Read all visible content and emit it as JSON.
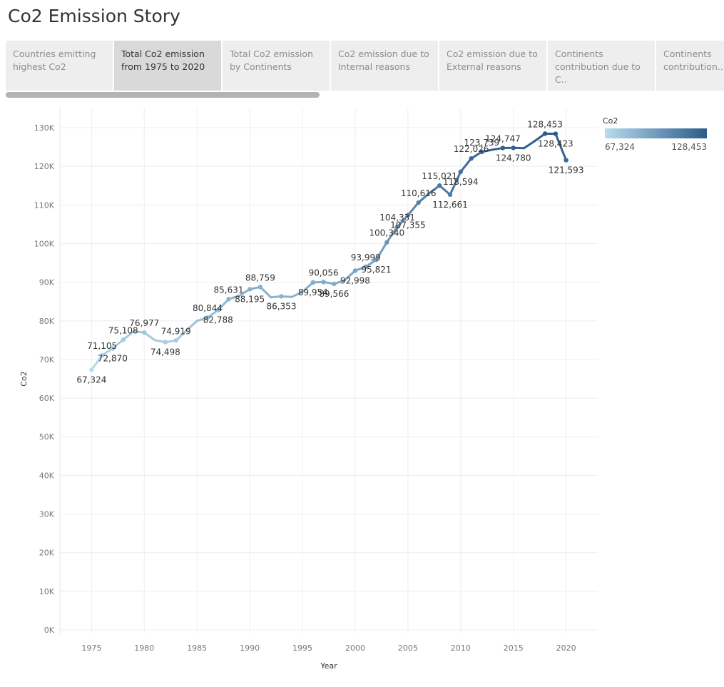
{
  "story": {
    "title": "Co2 Emission Story"
  },
  "tabs": [
    {
      "label": "Countries emitting highest Co2",
      "active": false
    },
    {
      "label": "Total Co2 emission from 1975 to 2020",
      "active": true
    },
    {
      "label": "Total Co2 emission by Continents",
      "active": false
    },
    {
      "label": "Co2 emission due to Internal reasons",
      "active": false
    },
    {
      "label": "Co2 emission due to External reasons",
      "active": false
    },
    {
      "label": "Continents contribution due to C..",
      "active": false
    },
    {
      "label": "Continents contribution..",
      "active": false
    }
  ],
  "colors": {
    "low": "#b7dcee",
    "high": "#2c5a8a",
    "grid": "#eeeeee",
    "tab_bg": "#eeeeee",
    "tab_active_bg": "#d9d9d9"
  },
  "chart_data": {
    "type": "line",
    "xlabel": "Year",
    "ylabel": "Co2",
    "xlim": [
      1972,
      2023
    ],
    "ylim": [
      0,
      135000
    ],
    "x_ticks": [
      1975,
      1980,
      1985,
      1990,
      1995,
      2000,
      2005,
      2010,
      2015,
      2020
    ],
    "y_ticks": [
      0,
      10000,
      20000,
      30000,
      40000,
      50000,
      60000,
      70000,
      80000,
      90000,
      100000,
      110000,
      120000,
      130000
    ],
    "y_tick_labels": [
      "0K",
      "10K",
      "20K",
      "30K",
      "40K",
      "50K",
      "60K",
      "70K",
      "80K",
      "90K",
      "100K",
      "110K",
      "120K",
      "130K"
    ],
    "grid": true,
    "legend": {
      "title": "Co2",
      "type": "color-gradient",
      "min_label": "67,324",
      "max_label": "128,453",
      "placement": "top-right"
    },
    "x": [
      1975,
      1976,
      1977,
      1978,
      1979,
      1980,
      1981,
      1982,
      1983,
      1984,
      1985,
      1986,
      1987,
      1988,
      1989,
      1990,
      1991,
      1992,
      1993,
      1994,
      1995,
      1996,
      1997,
      1998,
      1999,
      2000,
      2001,
      2002,
      2003,
      2004,
      2005,
      2006,
      2007,
      2008,
      2009,
      2010,
      2011,
      2012,
      2013,
      2014,
      2015,
      2016,
      2017,
      2018,
      2019,
      2020
    ],
    "y": [
      67324,
      71105,
      72870,
      75108,
      77300,
      76977,
      75000,
      74498,
      74919,
      77500,
      80000,
      80844,
      82788,
      85631,
      86500,
      88195,
      88759,
      86100,
      86353,
      86200,
      87500,
      89954,
      90056,
      89566,
      90500,
      92998,
      93999,
      95821,
      100340,
      104331,
      107355,
      110616,
      113000,
      115021,
      112661,
      118594,
      122026,
      123739,
      124300,
      124747,
      124780,
      124700,
      126500,
      128453,
      128423,
      121593
    ],
    "labels": [
      {
        "x": 1975,
        "y": 67324,
        "text": "67,324",
        "pos": "below"
      },
      {
        "x": 1976,
        "y": 71105,
        "text": "71,105",
        "pos": "above"
      },
      {
        "x": 1977,
        "y": 72870,
        "text": "72,870",
        "pos": "below"
      },
      {
        "x": 1978,
        "y": 75108,
        "text": "75,108",
        "pos": "above"
      },
      {
        "x": 1980,
        "y": 76977,
        "text": "76,977",
        "pos": "above"
      },
      {
        "x": 1982,
        "y": 74498,
        "text": "74,498",
        "pos": "below"
      },
      {
        "x": 1983,
        "y": 74919,
        "text": "74,919",
        "pos": "above"
      },
      {
        "x": 1986,
        "y": 80844,
        "text": "80,844",
        "pos": "above"
      },
      {
        "x": 1987,
        "y": 82788,
        "text": "82,788",
        "pos": "below"
      },
      {
        "x": 1988,
        "y": 85631,
        "text": "85,631",
        "pos": "above"
      },
      {
        "x": 1990,
        "y": 88195,
        "text": "88,195",
        "pos": "below"
      },
      {
        "x": 1991,
        "y": 88759,
        "text": "88,759",
        "pos": "above"
      },
      {
        "x": 1993,
        "y": 86353,
        "text": "86,353",
        "pos": "below"
      },
      {
        "x": 1996,
        "y": 89954,
        "text": "89,954",
        "pos": "below"
      },
      {
        "x": 1997,
        "y": 90056,
        "text": "90,056",
        "pos": "above"
      },
      {
        "x": 1998,
        "y": 89566,
        "text": "89,566",
        "pos": "below"
      },
      {
        "x": 2000,
        "y": 92998,
        "text": "92,998",
        "pos": "below"
      },
      {
        "x": 2001,
        "y": 93999,
        "text": "93,999",
        "pos": "above"
      },
      {
        "x": 2002,
        "y": 95821,
        "text": "95,821",
        "pos": "below"
      },
      {
        "x": 2003,
        "y": 100340,
        "text": "100,340",
        "pos": "above"
      },
      {
        "x": 2004,
        "y": 104331,
        "text": "104,331",
        "pos": "above"
      },
      {
        "x": 2005,
        "y": 107355,
        "text": "107,355",
        "pos": "below"
      },
      {
        "x": 2006,
        "y": 110616,
        "text": "110,616",
        "pos": "above"
      },
      {
        "x": 2008,
        "y": 115021,
        "text": "115,021",
        "pos": "above"
      },
      {
        "x": 2009,
        "y": 112661,
        "text": "112,661",
        "pos": "below"
      },
      {
        "x": 2010,
        "y": 118594,
        "text": "118,594",
        "pos": "below"
      },
      {
        "x": 2011,
        "y": 122026,
        "text": "122,026",
        "pos": "above"
      },
      {
        "x": 2012,
        "y": 123739,
        "text": "123,739",
        "pos": "above"
      },
      {
        "x": 2014,
        "y": 124747,
        "text": "124,747",
        "pos": "above"
      },
      {
        "x": 2015,
        "y": 124780,
        "text": "124,780",
        "pos": "below"
      },
      {
        "x": 2018,
        "y": 128453,
        "text": "128,453",
        "pos": "above"
      },
      {
        "x": 2019,
        "y": 128423,
        "text": "128,423",
        "pos": "below"
      },
      {
        "x": 2020,
        "y": 121593,
        "text": "121,593",
        "pos": "below"
      }
    ]
  }
}
